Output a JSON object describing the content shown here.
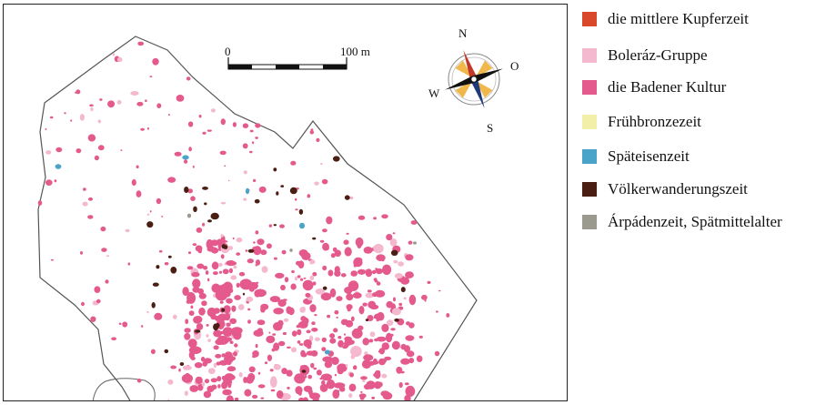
{
  "scale_bar": {
    "start_label": "0",
    "end_label": "100 m"
  },
  "compass": {
    "north": "N",
    "east": "O",
    "south": "S",
    "west": "W"
  },
  "colors": {
    "outline": "#555555",
    "copper_age": "#d9482b",
    "boleraz": "#f4b9cf",
    "baden": "#e45a8c",
    "bronze": "#f2f0a8",
    "iron": "#4aa3c8",
    "migration": "#4a1e12",
    "arpad": "#9a9a8e"
  },
  "legend": [
    {
      "label": "die mittlere Kupferzeit",
      "color": "#d9482b"
    },
    {
      "label": "Boleráz-Gruppe",
      "color": "#f4b9cf"
    },
    {
      "label": "die Badener Kultur",
      "color": "#e45a8c"
    },
    {
      "label": "Frühbronzezeit",
      "color": "#f2f0a8"
    },
    {
      "label": "Späteisenzeit",
      "color": "#4aa3c8"
    },
    {
      "label": "Völkerwanderungszeit",
      "color": "#4a1e12"
    },
    {
      "label": "Árpádenzeit, Spätmittelalter",
      "color": "#9a9a8e"
    }
  ]
}
